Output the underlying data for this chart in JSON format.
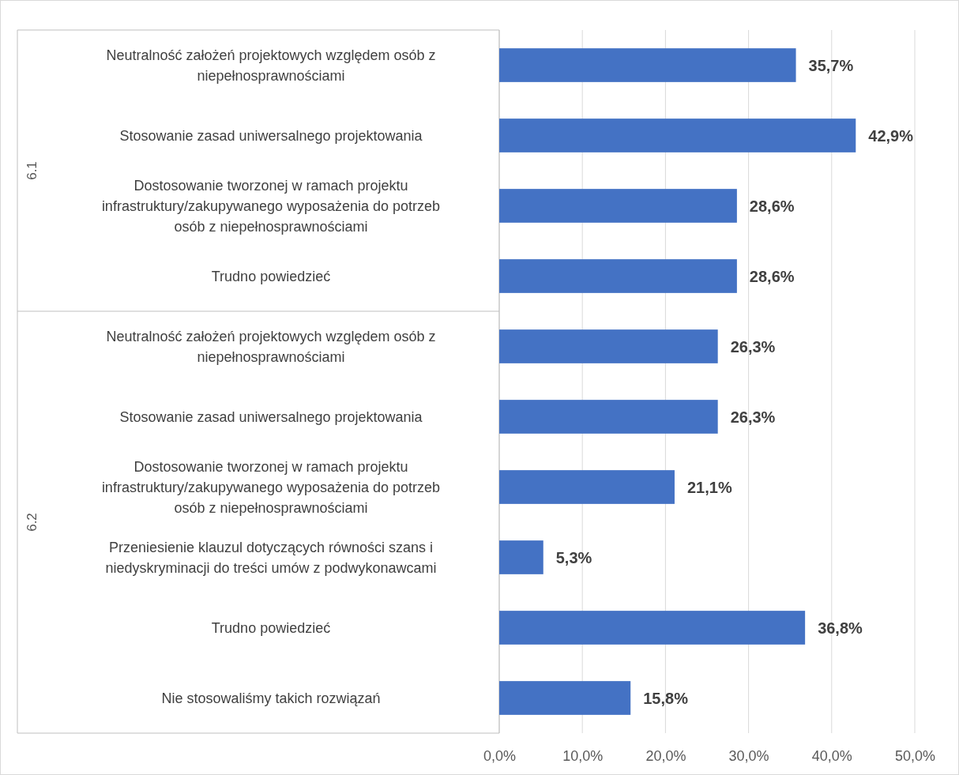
{
  "chart_data": {
    "type": "bar",
    "orientation": "horizontal",
    "categories": [
      "Neutralność założeń projektowych względem osób z niepełnosprawnościami",
      "Stosowanie zasad uniwersalnego projektowania",
      "Dostosowanie tworzonej w ramach projektu infrastruktury/zakupywanego wyposażenia do potrzeb osób z niepełnosprawnościami",
      "Trudno powiedzieć",
      "Neutralność założeń projektowych względem osób z niepełnosprawnościami",
      "Stosowanie zasad uniwersalnego projektowania",
      "Dostosowanie tworzonej w ramach projektu infrastruktury/zakupywanego wyposażenia do potrzeb osób z niepełnosprawnościami",
      "Przeniesienie klauzul dotyczących równości szans i niedyskryminacji do treści umów z podwykonawcami",
      "Trudno powiedzieć",
      "Nie stosowaliśmy takich rozwiązań"
    ],
    "values": [
      35.7,
      42.9,
      28.6,
      28.6,
      26.3,
      26.3,
      21.1,
      5.3,
      36.8,
      15.8
    ],
    "value_labels": [
      "35,7%",
      "42,9%",
      "28,6%",
      "28,6%",
      "26,3%",
      "26,3%",
      "21,1%",
      "5,3%",
      "36,8%",
      "15,8%"
    ],
    "color": "#4472c4",
    "xlim": [
      0,
      50
    ],
    "xticks": [
      {
        "value": 0,
        "label": "0,0%"
      },
      {
        "value": 10,
        "label": "10,0%"
      },
      {
        "value": 20,
        "label": "20,0%"
      },
      {
        "value": 30,
        "label": "30,0%"
      },
      {
        "value": 40,
        "label": "40,0%"
      },
      {
        "value": 50,
        "label": "50,0%"
      }
    ],
    "grid": "x",
    "annotations": [
      "6.1",
      "6.2"
    ]
  }
}
